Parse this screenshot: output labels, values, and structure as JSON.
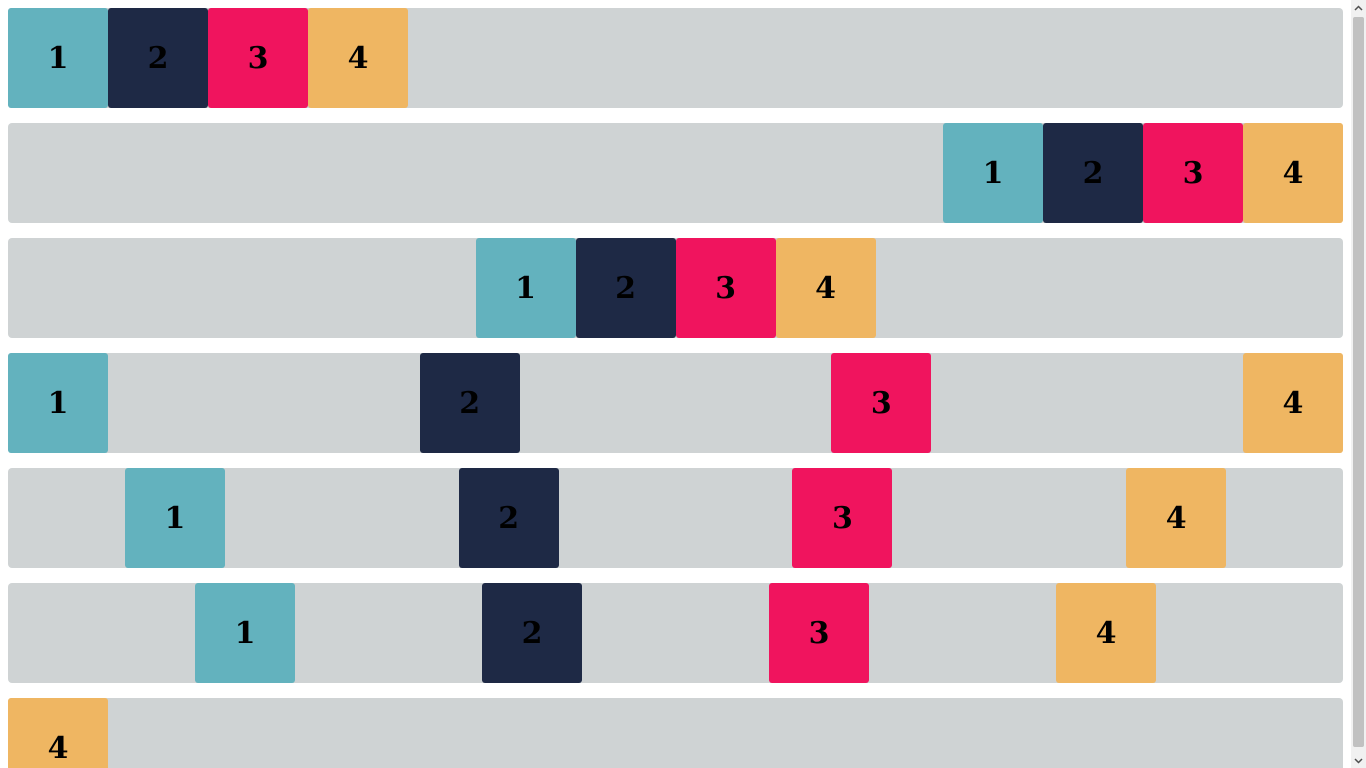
{
  "colors": {
    "row_background": "#cfd3d4",
    "box_1": "#63b2be",
    "box_2": "#1e2945",
    "box_3": "#f0145e",
    "box_4": "#efb662"
  },
  "rows": [
    {
      "boxes": [
        {
          "label": "1"
        },
        {
          "label": "2"
        },
        {
          "label": "3"
        },
        {
          "label": "4"
        }
      ]
    },
    {
      "boxes": [
        {
          "label": "1"
        },
        {
          "label": "2"
        },
        {
          "label": "3"
        },
        {
          "label": "4"
        }
      ]
    },
    {
      "boxes": [
        {
          "label": "1"
        },
        {
          "label": "2"
        },
        {
          "label": "3"
        },
        {
          "label": "4"
        }
      ]
    },
    {
      "boxes": [
        {
          "label": "1"
        },
        {
          "label": "2"
        },
        {
          "label": "3"
        },
        {
          "label": "4"
        }
      ]
    },
    {
      "boxes": [
        {
          "label": "1"
        },
        {
          "label": "2"
        },
        {
          "label": "3"
        },
        {
          "label": "4"
        }
      ]
    },
    {
      "boxes": [
        {
          "label": "1"
        },
        {
          "label": "2"
        },
        {
          "label": "3"
        },
        {
          "label": "4"
        }
      ]
    },
    {
      "boxes": [
        {
          "label": "4"
        }
      ]
    }
  ],
  "scrollbar": {
    "up_icon": "scroll-up-arrow-icon",
    "down_icon": "scroll-down-arrow-icon"
  }
}
